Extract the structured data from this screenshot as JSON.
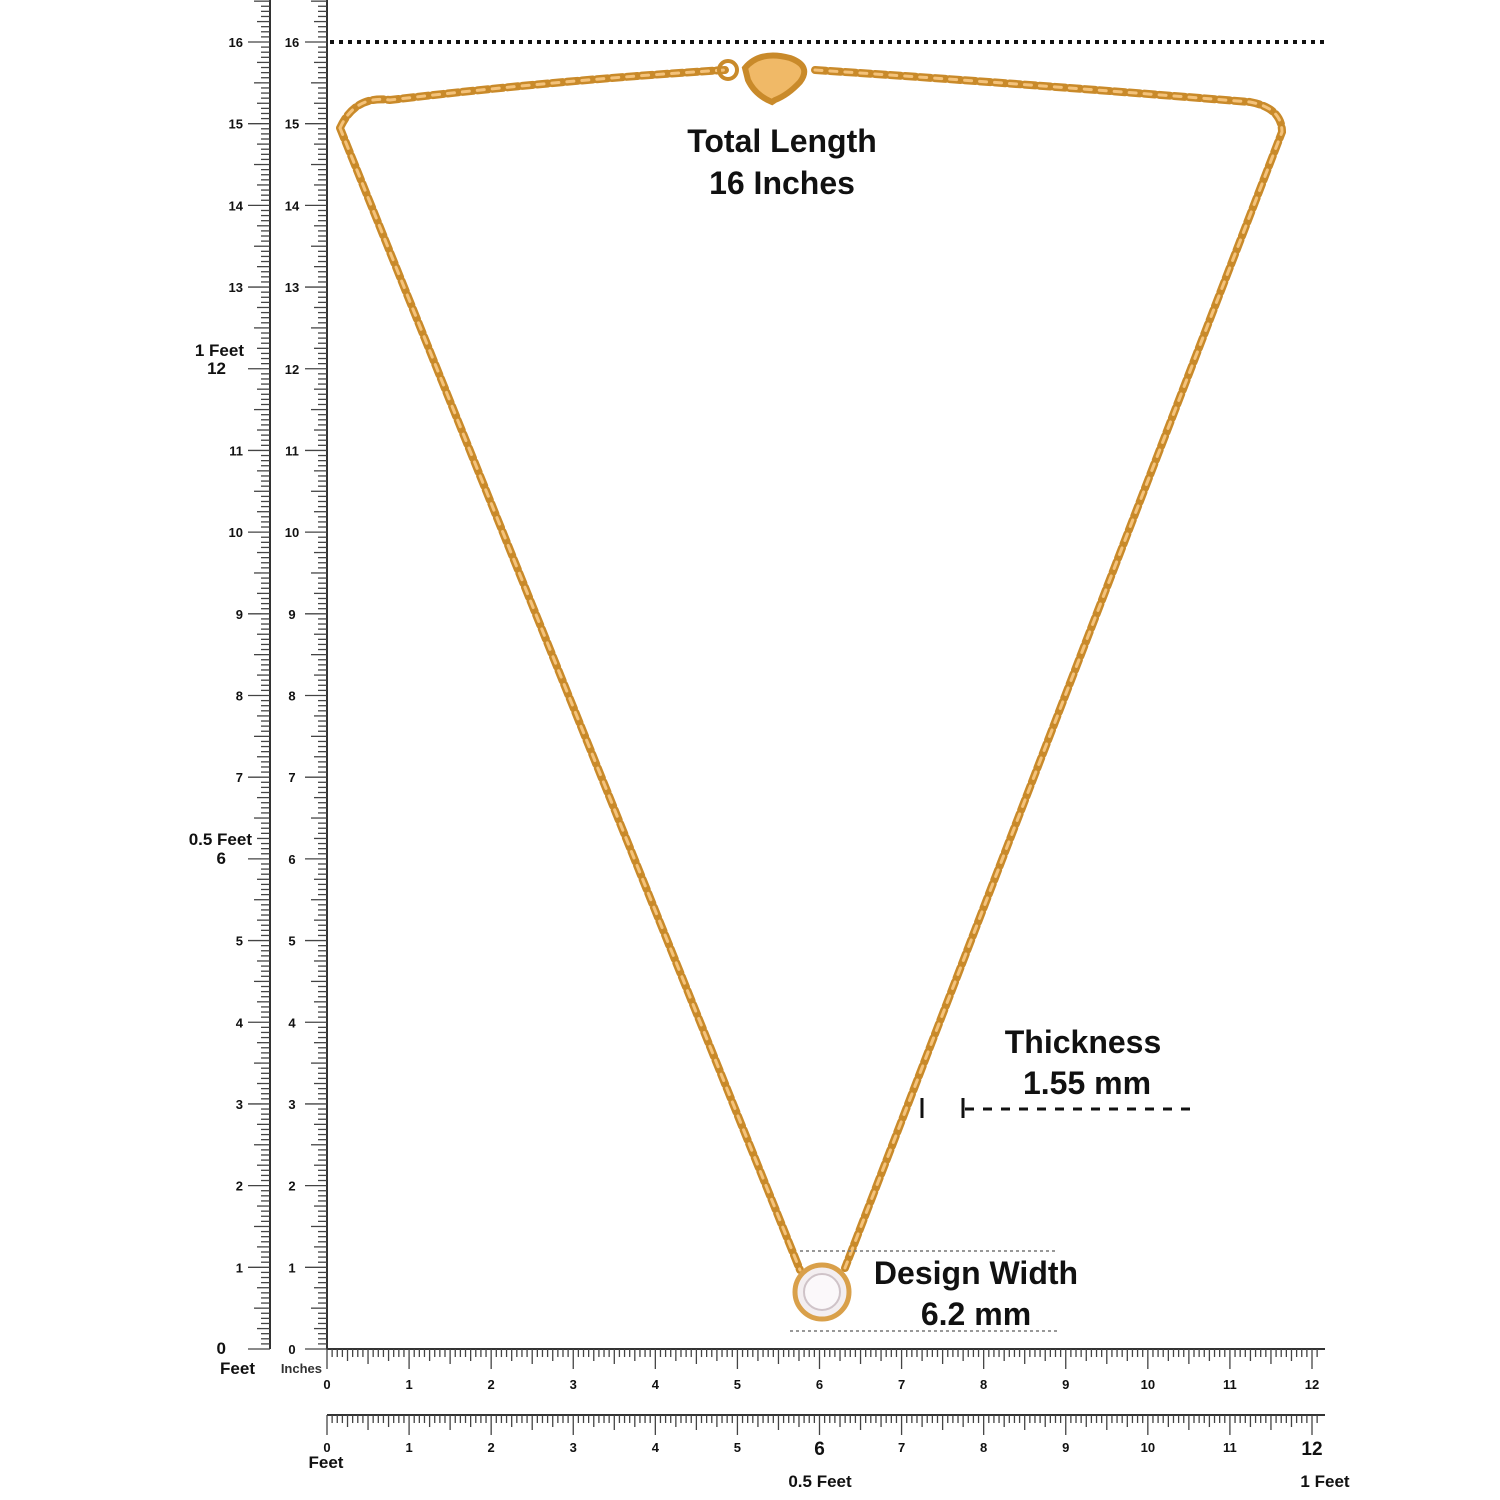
{
  "annotations": {
    "total_length": {
      "label": "Total Length",
      "value": "16 Inches"
    },
    "thickness": {
      "label": "Thickness",
      "value": "1.55 mm"
    },
    "design_width": {
      "label": "Design Width",
      "value": "6.2 mm"
    }
  },
  "rulers": {
    "left_feet": {
      "unit": "Feet",
      "ticks": [
        0,
        1,
        2,
        3,
        4,
        5,
        6,
        7,
        8,
        9,
        10,
        11,
        12,
        13,
        14,
        15,
        16
      ],
      "markers": [
        "0.5 Feet",
        "1 Feet"
      ]
    },
    "left_inches": {
      "unit": "Inches",
      "ticks": [
        0,
        1,
        2,
        3,
        4,
        5,
        6,
        7,
        8,
        9,
        10,
        11,
        12,
        13,
        14,
        15,
        16
      ]
    },
    "bottom_inches": {
      "ticks": [
        0,
        1,
        2,
        3,
        4,
        5,
        6,
        7,
        8,
        9,
        10,
        11,
        12
      ]
    },
    "bottom_feet": {
      "unit": "Feet",
      "ticks": [
        0,
        1,
        2,
        3,
        4,
        5,
        6,
        7,
        8,
        9,
        10,
        11,
        12
      ],
      "markers": [
        "0.5 Feet",
        "1 Feet"
      ]
    }
  }
}
